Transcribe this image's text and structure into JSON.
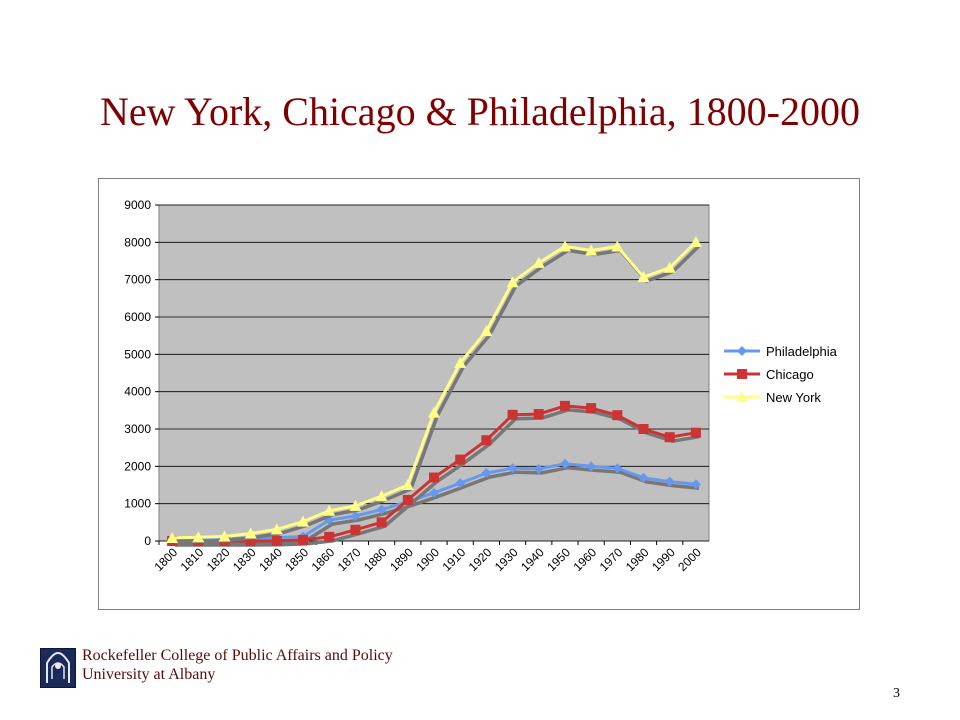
{
  "slide": {
    "title": "New York, Chicago & Philadelphia, 1800-2000",
    "footer_line1": "Rockefeller College of Public Affairs and Policy",
    "footer_line2": "University at Albany",
    "page_number": "3"
  },
  "chart_data": {
    "type": "line",
    "categories": [
      "1800",
      "1810",
      "1820",
      "1830",
      "1840",
      "1850",
      "1860",
      "1870",
      "1880",
      "1890",
      "1900",
      "1910",
      "1920",
      "1930",
      "1940",
      "1950",
      "1960",
      "1970",
      "1980",
      "1990",
      "2000"
    ],
    "ylim": [
      0,
      9000
    ],
    "yticks": [
      0,
      1000,
      2000,
      3000,
      4000,
      5000,
      6000,
      7000,
      8000,
      9000
    ],
    "grid": true,
    "legend_position": "right",
    "series": [
      {
        "name": "Philadelphia",
        "color": "#6699ee",
        "marker": "diamond",
        "values": [
          40,
          50,
          60,
          80,
          90,
          120,
          560,
          670,
          840,
          1050,
          1290,
          1550,
          1820,
          1950,
          1930,
          2070,
          2000,
          1950,
          1690,
          1590,
          1520
        ]
      },
      {
        "name": "Chicago",
        "color": "#cc3333",
        "marker": "square",
        "values": [
          0,
          0,
          0,
          0,
          5,
          30,
          110,
          300,
          500,
          1100,
          1700,
          2180,
          2700,
          3380,
          3400,
          3620,
          3560,
          3370,
          3000,
          2780,
          2900
        ]
      },
      {
        "name": "New York",
        "color": "#ffff88",
        "marker": "triangle",
        "values": [
          80,
          100,
          120,
          200,
          310,
          520,
          810,
          940,
          1200,
          1500,
          3440,
          4770,
          5620,
          6930,
          7450,
          7890,
          7780,
          7890,
          7070,
          7320,
          8010
        ]
      }
    ]
  }
}
